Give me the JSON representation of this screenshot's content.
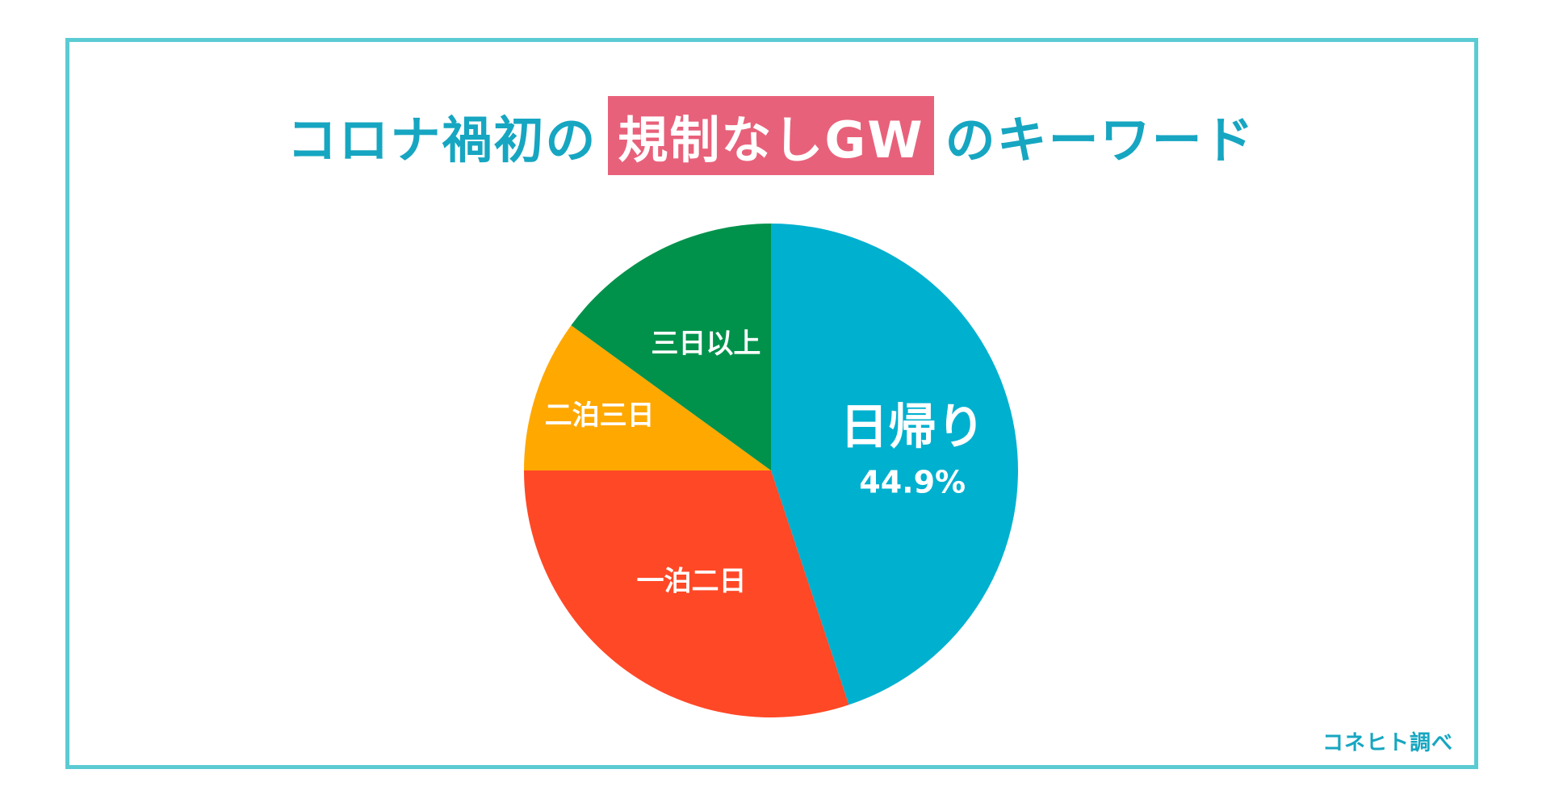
{
  "title": {
    "before": "コロナ禍初の",
    "highlight": "規制なしGW",
    "after": "のキーワード"
  },
  "credit": "コネヒト調べ",
  "colors": {
    "frame": "#5bcbd3",
    "title": "#16a6c1",
    "highlight_bg": "#e8617a"
  },
  "chart_data": {
    "type": "pie",
    "start": "12 o'clock",
    "direction": "clockwise",
    "slices": [
      {
        "label": "日帰り",
        "value_label": "44.9%",
        "value": 44.9,
        "color": "#00b0cf"
      },
      {
        "label": "一泊二日",
        "value": 30.1,
        "color": "#ff4826"
      },
      {
        "label": "二泊三日",
        "value": 10.0,
        "color": "#ffa800"
      },
      {
        "label": "三日以上",
        "value": 15.0,
        "color": "#00924b"
      }
    ]
  }
}
